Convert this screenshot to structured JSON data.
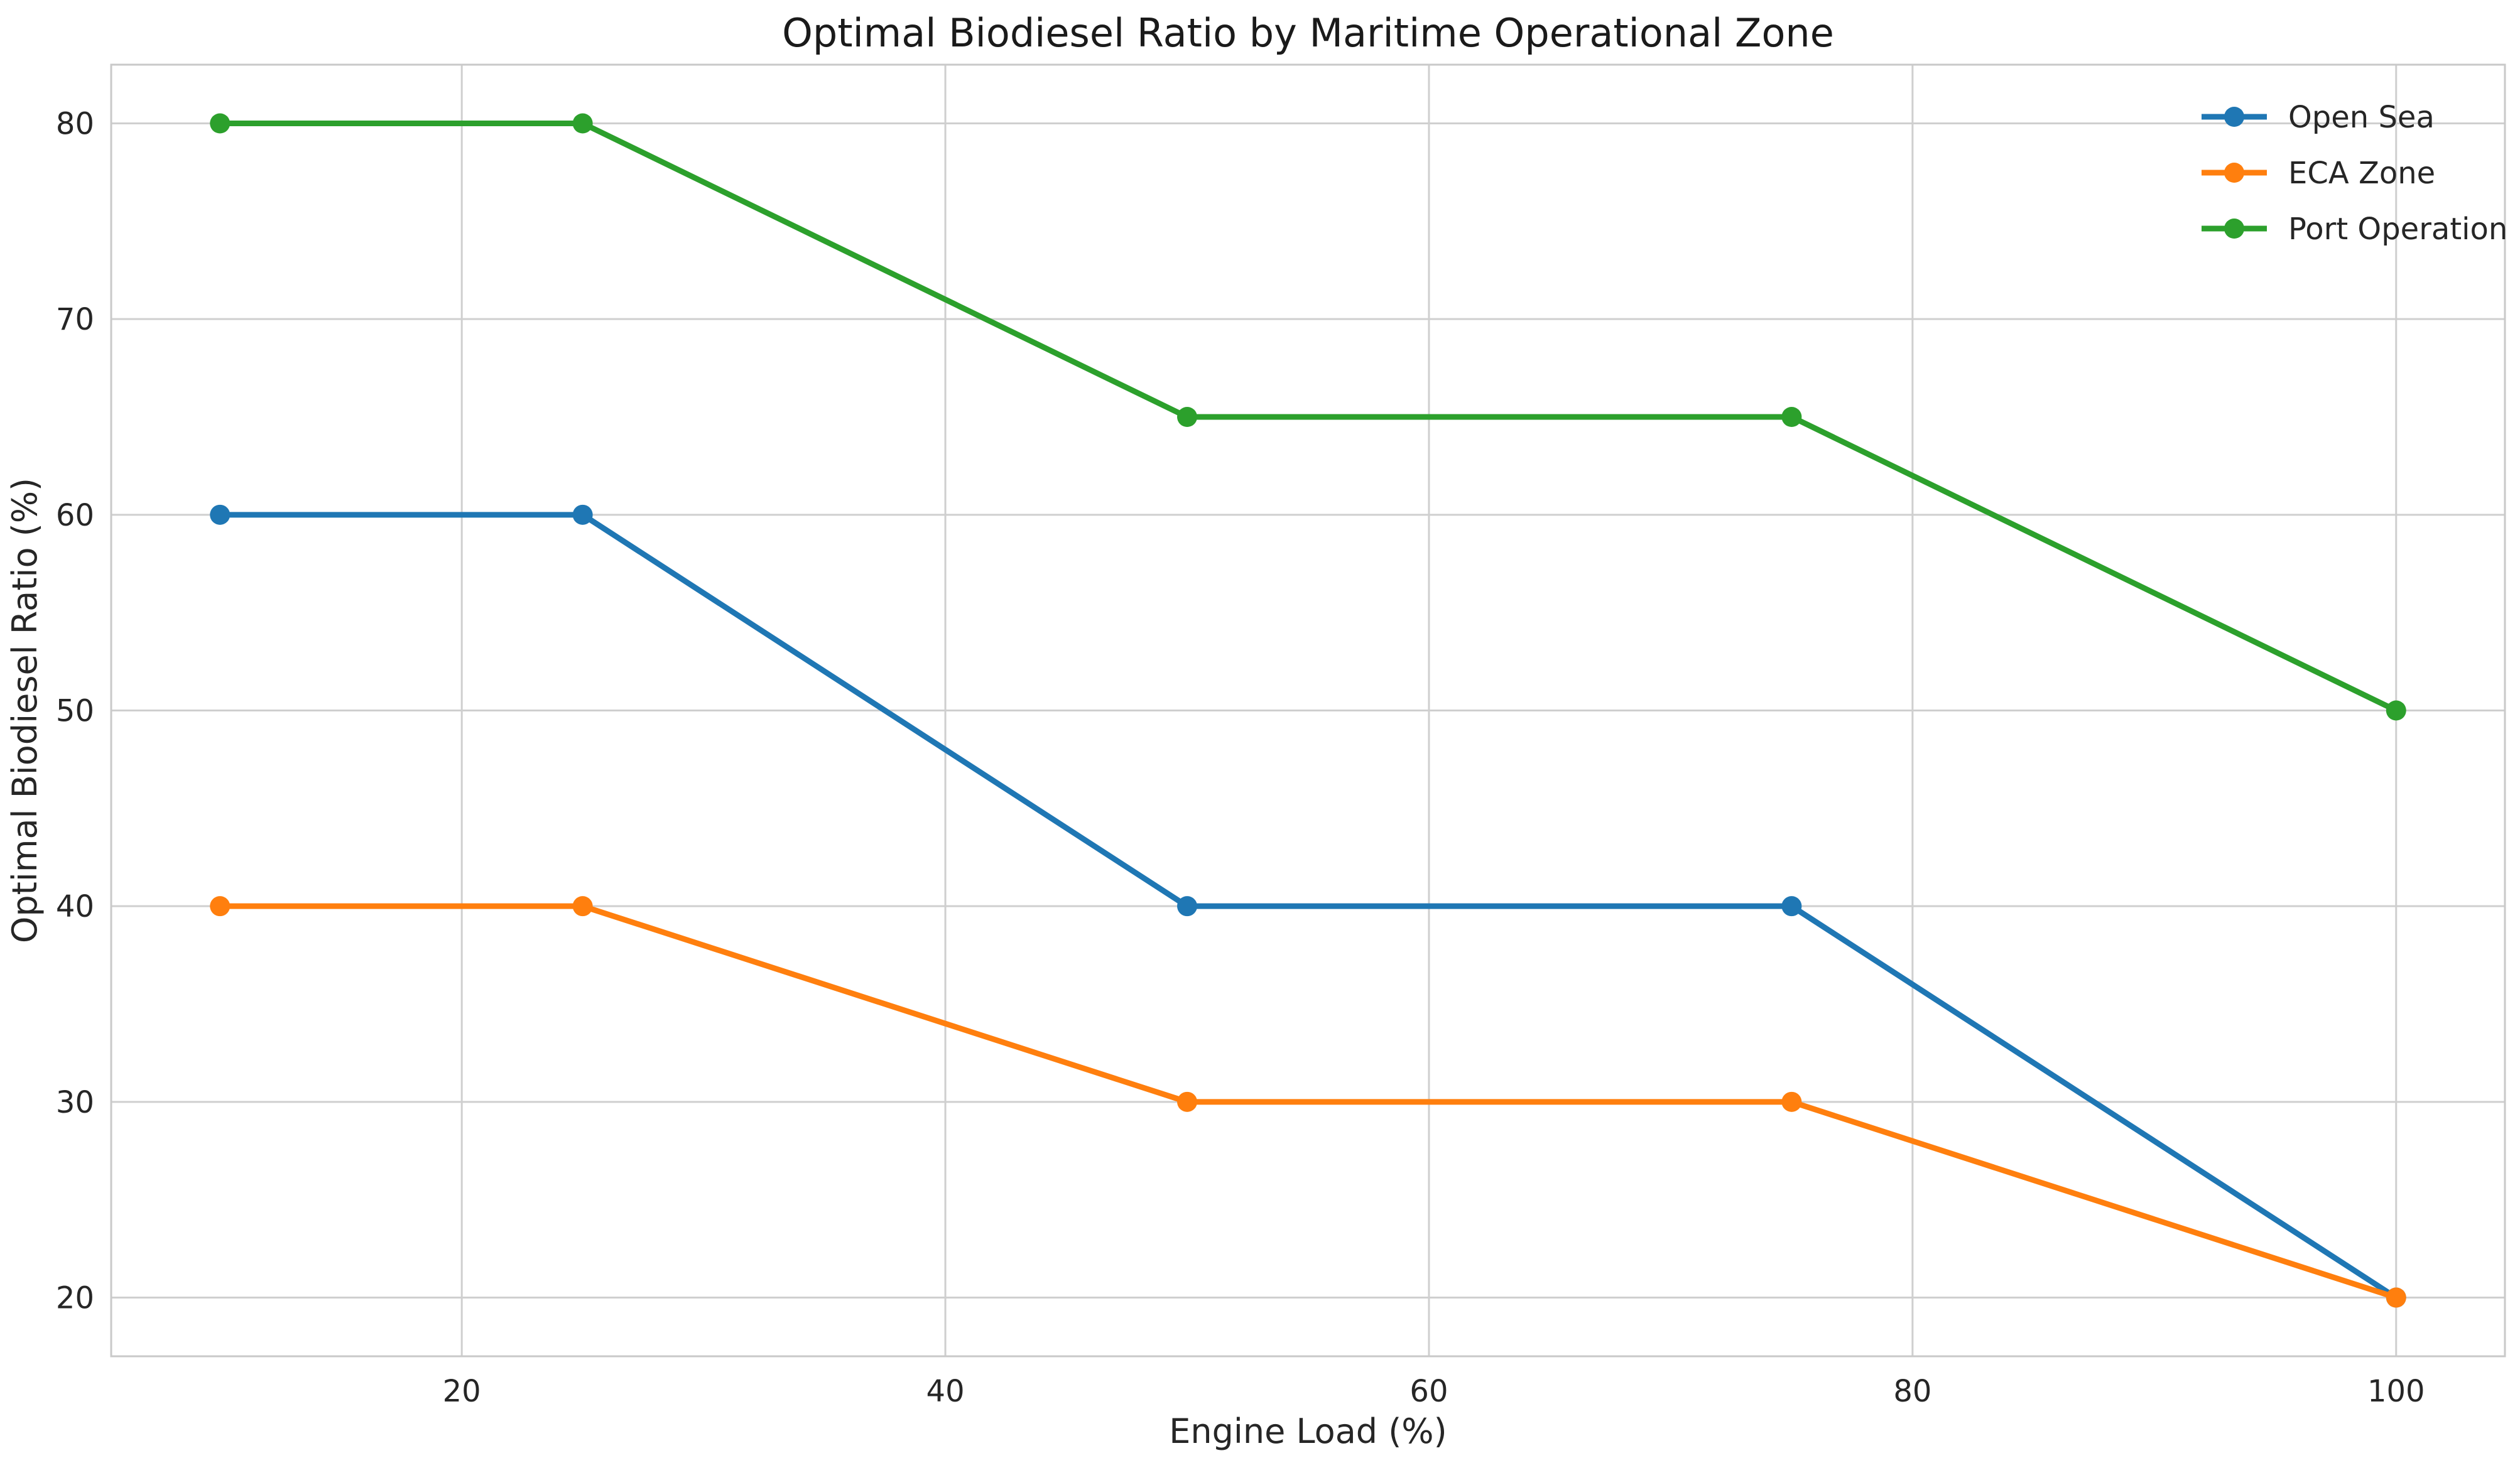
{
  "chart_data": {
    "type": "line",
    "title": "Optimal Biodiesel Ratio by Maritime Operational Zone",
    "xlabel": "Engine Load (%)",
    "ylabel": "Optimal Biodiesel Ratio (%)",
    "x": [
      10,
      25,
      50,
      75,
      100
    ],
    "series": [
      {
        "name": "Open Sea",
        "color": "#1f77b4",
        "values": [
          60,
          60,
          40,
          40,
          20
        ]
      },
      {
        "name": "ECA Zone",
        "color": "#ff7f0e",
        "values": [
          40,
          40,
          30,
          30,
          20
        ]
      },
      {
        "name": "Port Operation",
        "color": "#2ca02c",
        "values": [
          80,
          80,
          65,
          65,
          50
        ]
      }
    ],
    "xticks": [
      20,
      40,
      60,
      80,
      100
    ],
    "yticks": [
      20,
      30,
      40,
      50,
      60,
      70,
      80
    ],
    "xlim": [
      5.5,
      104.5
    ],
    "ylim": [
      17,
      83
    ],
    "grid": true,
    "legend_position": "upper right",
    "colors": {
      "background": "#ffffff",
      "grid": "#cfcfcf",
      "spine": "#c9c9c9",
      "text": "#262626",
      "title_text": "#1a1a1a"
    }
  }
}
